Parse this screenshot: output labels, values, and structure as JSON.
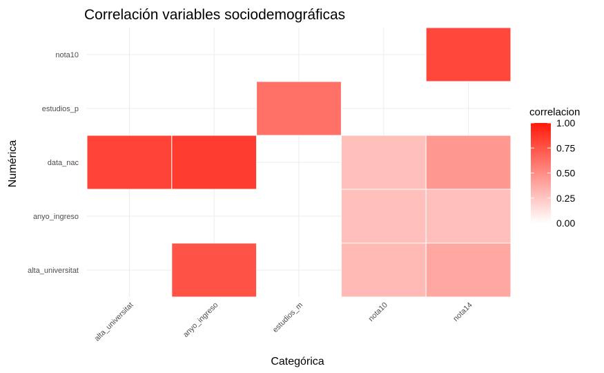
{
  "chart_data": {
    "type": "heatmap",
    "title": "Correlación variables sociodemográficas",
    "xlabel": "Categórica",
    "ylabel": "Numérica",
    "x_categories": [
      "alta_universitat",
      "anyo_ingreso",
      "estudios_m",
      "nota10",
      "nota14"
    ],
    "y_categories": [
      "alta_universitat",
      "anyo_ingreso",
      "data_nac",
      "estudios_p",
      "nota10"
    ],
    "cells": [
      {
        "x": "nota14",
        "y": "nota10",
        "value": 0.8
      },
      {
        "x": "estudios_m",
        "y": "estudios_p",
        "value": 0.62
      },
      {
        "x": "alta_universitat",
        "y": "data_nac",
        "value": 0.82
      },
      {
        "x": "anyo_ingreso",
        "y": "data_nac",
        "value": 0.85
      },
      {
        "x": "nota10",
        "y": "data_nac",
        "value": 0.28
      },
      {
        "x": "nota14",
        "y": "data_nac",
        "value": 0.45
      },
      {
        "x": "nota10",
        "y": "anyo_ingreso",
        "value": 0.28
      },
      {
        "x": "nota14",
        "y": "anyo_ingreso",
        "value": 0.28
      },
      {
        "x": "anyo_ingreso",
        "y": "alta_universitat",
        "value": 0.75
      },
      {
        "x": "nota10",
        "y": "alta_universitat",
        "value": 0.3
      },
      {
        "x": "nota14",
        "y": "alta_universitat",
        "value": 0.38
      }
    ],
    "legend": {
      "title": "correlacion",
      "ticks": [
        "0.00",
        "0.25",
        "0.50",
        "0.75",
        "1.00"
      ],
      "range": [
        0,
        1
      ],
      "low_color": "#ffffff",
      "high_color": "#ff1a0a",
      "placement": "right"
    },
    "grid": true
  }
}
